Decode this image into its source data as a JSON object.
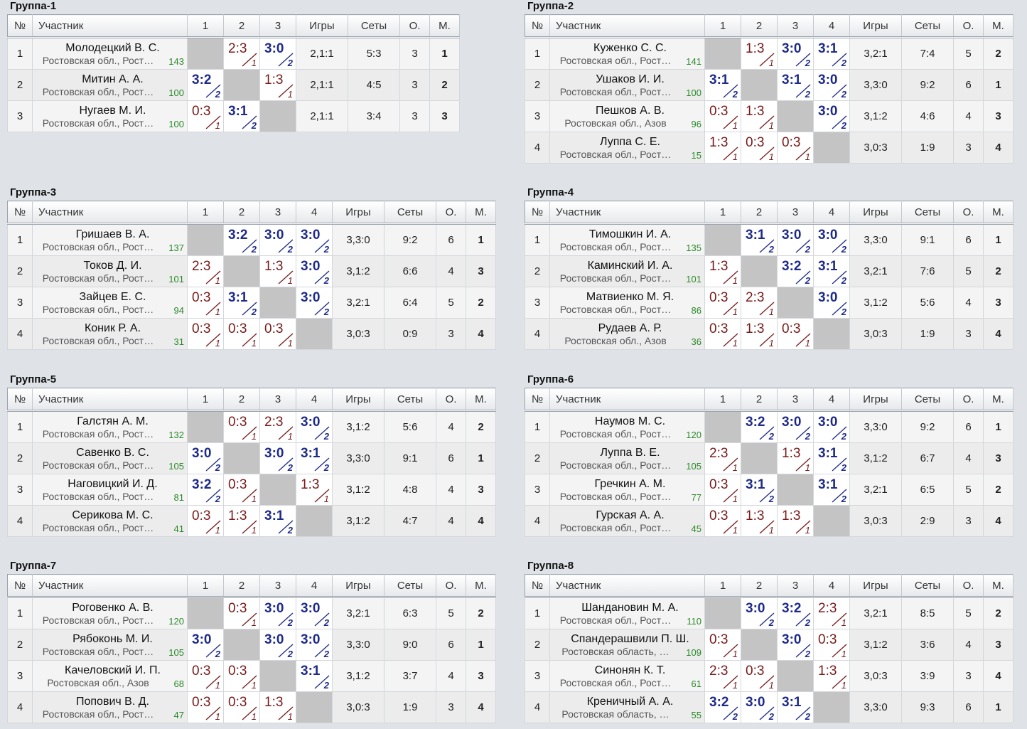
{
  "headers": {
    "no": "№",
    "participant": "Участник",
    "games": "Игры",
    "sets": "Сеты",
    "points": "О.",
    "place": "М."
  },
  "groups": [
    {
      "title": "Группа-1",
      "players": [
        {
          "n": "1",
          "name": "Молодецкий В. С.",
          "region": "Ростовская обл., Рост…",
          "rating": "143",
          "results": [
            null,
            {
              "s": "2:3",
              "p": "1",
              "w": false
            },
            {
              "s": "3:0",
              "p": "2",
              "w": true
            }
          ],
          "games": "2,1:1",
          "sets": "5:3",
          "pts": "3",
          "place": "1"
        },
        {
          "n": "2",
          "name": "Митин А. А.",
          "region": "Ростовская обл., Рост…",
          "rating": "100",
          "results": [
            {
              "s": "3:2",
              "p": "2",
              "w": true
            },
            null,
            {
              "s": "1:3",
              "p": "1",
              "w": false
            }
          ],
          "games": "2,1:1",
          "sets": "4:5",
          "pts": "3",
          "place": "2"
        },
        {
          "n": "3",
          "name": "Нугаев М. И.",
          "region": "Ростовская обл., Рост…",
          "rating": "100",
          "results": [
            {
              "s": "0:3",
              "p": "1",
              "w": false
            },
            {
              "s": "3:1",
              "p": "2",
              "w": true
            },
            null
          ],
          "games": "2,1:1",
          "sets": "3:4",
          "pts": "3",
          "place": "3"
        }
      ]
    },
    {
      "title": "Группа-2",
      "players": [
        {
          "n": "1",
          "name": "Куженко С. С.",
          "region": "Ростовская обл., Рост…",
          "rating": "141",
          "results": [
            null,
            {
              "s": "1:3",
              "p": "1",
              "w": false
            },
            {
              "s": "3:0",
              "p": "2",
              "w": true
            },
            {
              "s": "3:1",
              "p": "2",
              "w": true
            }
          ],
          "games": "3,2:1",
          "sets": "7:4",
          "pts": "5",
          "place": "2"
        },
        {
          "n": "2",
          "name": "Ушаков И. И.",
          "region": "Ростовская обл., Рост…",
          "rating": "100",
          "results": [
            {
              "s": "3:1",
              "p": "2",
              "w": true
            },
            null,
            {
              "s": "3:1",
              "p": "2",
              "w": true
            },
            {
              "s": "3:0",
              "p": "2",
              "w": true
            }
          ],
          "games": "3,3:0",
          "sets": "9:2",
          "pts": "6",
          "place": "1"
        },
        {
          "n": "3",
          "name": "Пешков А. В.",
          "region": "Ростовская обл., Азов",
          "rating": "96",
          "results": [
            {
              "s": "0:3",
              "p": "1",
              "w": false
            },
            {
              "s": "1:3",
              "p": "1",
              "w": false
            },
            null,
            {
              "s": "3:0",
              "p": "2",
              "w": true
            }
          ],
          "games": "3,1:2",
          "sets": "4:6",
          "pts": "4",
          "place": "3"
        },
        {
          "n": "4",
          "name": "Луппа С. Е.",
          "region": "Ростовская обл., Рост…",
          "rating": "15",
          "results": [
            {
              "s": "1:3",
              "p": "1",
              "w": false
            },
            {
              "s": "0:3",
              "p": "1",
              "w": false
            },
            {
              "s": "0:3",
              "p": "1",
              "w": false
            },
            null
          ],
          "games": "3,0:3",
          "sets": "1:9",
          "pts": "3",
          "place": "4"
        }
      ]
    },
    {
      "title": "Группа-3",
      "players": [
        {
          "n": "1",
          "name": "Гришаев В. А.",
          "region": "Ростовская обл., Рост…",
          "rating": "137",
          "results": [
            null,
            {
              "s": "3:2",
              "p": "2",
              "w": true
            },
            {
              "s": "3:0",
              "p": "2",
              "w": true
            },
            {
              "s": "3:0",
              "p": "2",
              "w": true
            }
          ],
          "games": "3,3:0",
          "sets": "9:2",
          "pts": "6",
          "place": "1"
        },
        {
          "n": "2",
          "name": "Токов Д. И.",
          "region": "Ростовская обл., Рост…",
          "rating": "101",
          "results": [
            {
              "s": "2:3",
              "p": "1",
              "w": false
            },
            null,
            {
              "s": "1:3",
              "p": "1",
              "w": false
            },
            {
              "s": "3:0",
              "p": "2",
              "w": true
            }
          ],
          "games": "3,1:2",
          "sets": "6:6",
          "pts": "4",
          "place": "3"
        },
        {
          "n": "3",
          "name": "Зайцев Е. С.",
          "region": "Ростовская обл., Рост…",
          "rating": "94",
          "results": [
            {
              "s": "0:3",
              "p": "1",
              "w": false
            },
            {
              "s": "3:1",
              "p": "2",
              "w": true
            },
            null,
            {
              "s": "3:0",
              "p": "2",
              "w": true
            }
          ],
          "games": "3,2:1",
          "sets": "6:4",
          "pts": "5",
          "place": "2"
        },
        {
          "n": "4",
          "name": "Коник Р. А.",
          "region": "Ростовская обл., Рост…",
          "rating": "31",
          "results": [
            {
              "s": "0:3",
              "p": "1",
              "w": false
            },
            {
              "s": "0:3",
              "p": "1",
              "w": false
            },
            {
              "s": "0:3",
              "p": "1",
              "w": false
            },
            null
          ],
          "games": "3,0:3",
          "sets": "0:9",
          "pts": "3",
          "place": "4"
        }
      ]
    },
    {
      "title": "Группа-4",
      "players": [
        {
          "n": "1",
          "name": "Тимошкин И. А.",
          "region": "Ростовская обл., Рост…",
          "rating": "135",
          "results": [
            null,
            {
              "s": "3:1",
              "p": "2",
              "w": true
            },
            {
              "s": "3:0",
              "p": "2",
              "w": true
            },
            {
              "s": "3:0",
              "p": "2",
              "w": true
            }
          ],
          "games": "3,3:0",
          "sets": "9:1",
          "pts": "6",
          "place": "1"
        },
        {
          "n": "2",
          "name": "Каминский И. А.",
          "region": "Ростовская обл., Рост…",
          "rating": "101",
          "results": [
            {
              "s": "1:3",
              "p": "1",
              "w": false
            },
            null,
            {
              "s": "3:2",
              "p": "2",
              "w": true
            },
            {
              "s": "3:1",
              "p": "2",
              "w": true
            }
          ],
          "games": "3,2:1",
          "sets": "7:6",
          "pts": "5",
          "place": "2"
        },
        {
          "n": "3",
          "name": "Матвиенко М. Я.",
          "region": "Ростовская обл., Рост…",
          "rating": "86",
          "results": [
            {
              "s": "0:3",
              "p": "1",
              "w": false
            },
            {
              "s": "2:3",
              "p": "1",
              "w": false
            },
            null,
            {
              "s": "3:0",
              "p": "2",
              "w": true
            }
          ],
          "games": "3,1:2",
          "sets": "5:6",
          "pts": "4",
          "place": "3"
        },
        {
          "n": "4",
          "name": "Рудаев А. Р.",
          "region": "Ростовская обл., Азов",
          "rating": "36",
          "results": [
            {
              "s": "0:3",
              "p": "1",
              "w": false
            },
            {
              "s": "1:3",
              "p": "1",
              "w": false
            },
            {
              "s": "0:3",
              "p": "1",
              "w": false
            },
            null
          ],
          "games": "3,0:3",
          "sets": "1:9",
          "pts": "3",
          "place": "4"
        }
      ]
    },
    {
      "title": "Группа-5",
      "players": [
        {
          "n": "1",
          "name": "Галстян А. М.",
          "region": "Ростовская обл., Рост…",
          "rating": "132",
          "results": [
            null,
            {
              "s": "0:3",
              "p": "1",
              "w": false
            },
            {
              "s": "2:3",
              "p": "1",
              "w": false
            },
            {
              "s": "3:0",
              "p": "2",
              "w": true
            }
          ],
          "games": "3,1:2",
          "sets": "5:6",
          "pts": "4",
          "place": "2"
        },
        {
          "n": "2",
          "name": "Савенко В. С.",
          "region": "Ростовская обл., Рост…",
          "rating": "105",
          "results": [
            {
              "s": "3:0",
              "p": "2",
              "w": true
            },
            null,
            {
              "s": "3:0",
              "p": "2",
              "w": true
            },
            {
              "s": "3:1",
              "p": "2",
              "w": true
            }
          ],
          "games": "3,3:0",
          "sets": "9:1",
          "pts": "6",
          "place": "1"
        },
        {
          "n": "3",
          "name": "Наговицкий И. Д.",
          "region": "Ростовская обл., Рост…",
          "rating": "81",
          "results": [
            {
              "s": "3:2",
              "p": "2",
              "w": true
            },
            {
              "s": "0:3",
              "p": "1",
              "w": false
            },
            null,
            {
              "s": "1:3",
              "p": "1",
              "w": false
            }
          ],
          "games": "3,1:2",
          "sets": "4:8",
          "pts": "4",
          "place": "3"
        },
        {
          "n": "4",
          "name": "Серикова М. С.",
          "region": "Ростовская обл., Рост…",
          "rating": "41",
          "results": [
            {
              "s": "0:3",
              "p": "1",
              "w": false
            },
            {
              "s": "1:3",
              "p": "1",
              "w": false
            },
            {
              "s": "3:1",
              "p": "2",
              "w": true
            },
            null
          ],
          "games": "3,1:2",
          "sets": "4:7",
          "pts": "4",
          "place": "4"
        }
      ]
    },
    {
      "title": "Группа-6",
      "players": [
        {
          "n": "1",
          "name": "Наумов М. С.",
          "region": "Ростовская обл., Рост…",
          "rating": "120",
          "results": [
            null,
            {
              "s": "3:2",
              "p": "2",
              "w": true
            },
            {
              "s": "3:0",
              "p": "2",
              "w": true
            },
            {
              "s": "3:0",
              "p": "2",
              "w": true
            }
          ],
          "games": "3,3:0",
          "sets": "9:2",
          "pts": "6",
          "place": "1"
        },
        {
          "n": "2",
          "name": "Луппа В. Е.",
          "region": "Ростовская обл., Рост…",
          "rating": "105",
          "results": [
            {
              "s": "2:3",
              "p": "1",
              "w": false
            },
            null,
            {
              "s": "1:3",
              "p": "1",
              "w": false
            },
            {
              "s": "3:1",
              "p": "2",
              "w": true
            }
          ],
          "games": "3,1:2",
          "sets": "6:7",
          "pts": "4",
          "place": "3"
        },
        {
          "n": "3",
          "name": "Гречкин А. М.",
          "region": "Ростовская обл., Рост…",
          "rating": "77",
          "results": [
            {
              "s": "0:3",
              "p": "1",
              "w": false
            },
            {
              "s": "3:1",
              "p": "2",
              "w": true
            },
            null,
            {
              "s": "3:1",
              "p": "2",
              "w": true
            }
          ],
          "games": "3,2:1",
          "sets": "6:5",
          "pts": "5",
          "place": "2"
        },
        {
          "n": "4",
          "name": "Гурская А. А.",
          "region": "Ростовская обл., Рост…",
          "rating": "45",
          "results": [
            {
              "s": "0:3",
              "p": "1",
              "w": false
            },
            {
              "s": "1:3",
              "p": "1",
              "w": false
            },
            {
              "s": "1:3",
              "p": "1",
              "w": false
            },
            null
          ],
          "games": "3,0:3",
          "sets": "2:9",
          "pts": "3",
          "place": "4"
        }
      ]
    },
    {
      "title": "Группа-7",
      "players": [
        {
          "n": "1",
          "name": "Роговенко А. В.",
          "region": "Ростовская обл., Рост…",
          "rating": "120",
          "results": [
            null,
            {
              "s": "0:3",
              "p": "1",
              "w": false
            },
            {
              "s": "3:0",
              "p": "2",
              "w": true
            },
            {
              "s": "3:0",
              "p": "2",
              "w": true
            }
          ],
          "games": "3,2:1",
          "sets": "6:3",
          "pts": "5",
          "place": "2"
        },
        {
          "n": "2",
          "name": "Рябоконь М. И.",
          "region": "Ростовская обл., Рост…",
          "rating": "105",
          "results": [
            {
              "s": "3:0",
              "p": "2",
              "w": true
            },
            null,
            {
              "s": "3:0",
              "p": "2",
              "w": true
            },
            {
              "s": "3:0",
              "p": "2",
              "w": true
            }
          ],
          "games": "3,3:0",
          "sets": "9:0",
          "pts": "6",
          "place": "1"
        },
        {
          "n": "3",
          "name": "Качеловский И. П.",
          "region": "Ростовская обл., Азов",
          "rating": "68",
          "results": [
            {
              "s": "0:3",
              "p": "1",
              "w": false
            },
            {
              "s": "0:3",
              "p": "1",
              "w": false
            },
            null,
            {
              "s": "3:1",
              "p": "2",
              "w": true
            }
          ],
          "games": "3,1:2",
          "sets": "3:7",
          "pts": "4",
          "place": "3"
        },
        {
          "n": "4",
          "name": "Попович В. Д.",
          "region": "Ростовская обл., Рост…",
          "rating": "47",
          "results": [
            {
              "s": "0:3",
              "p": "1",
              "w": false
            },
            {
              "s": "0:3",
              "p": "1",
              "w": false
            },
            {
              "s": "1:3",
              "p": "1",
              "w": false
            },
            null
          ],
          "games": "3,0:3",
          "sets": "1:9",
          "pts": "3",
          "place": "4"
        }
      ]
    },
    {
      "title": "Группа-8",
      "players": [
        {
          "n": "1",
          "name": "Шандановин М. А.",
          "region": "Ростовская обл., Рост…",
          "rating": "110",
          "results": [
            null,
            {
              "s": "3:0",
              "p": "2",
              "w": true
            },
            {
              "s": "3:2",
              "p": "2",
              "w": true
            },
            {
              "s": "2:3",
              "p": "1",
              "w": false
            }
          ],
          "games": "3,2:1",
          "sets": "8:5",
          "pts": "5",
          "place": "2"
        },
        {
          "n": "2",
          "name": "Спандерашвили П. Ш.",
          "region": "Ростовская область, …",
          "rating": "109",
          "results": [
            {
              "s": "0:3",
              "p": "1",
              "w": false
            },
            null,
            {
              "s": "3:0",
              "p": "2",
              "w": true
            },
            {
              "s": "0:3",
              "p": "1",
              "w": false
            }
          ],
          "games": "3,1:2",
          "sets": "3:6",
          "pts": "4",
          "place": "3"
        },
        {
          "n": "3",
          "name": "Синонян К. Т.",
          "region": "Ростовская обл., Рост…",
          "rating": "61",
          "results": [
            {
              "s": "2:3",
              "p": "1",
              "w": false
            },
            {
              "s": "0:3",
              "p": "1",
              "w": false
            },
            null,
            {
              "s": "1:3",
              "p": "1",
              "w": false
            }
          ],
          "games": "3,0:3",
          "sets": "3:9",
          "pts": "3",
          "place": "4"
        },
        {
          "n": "4",
          "name": "Креничный А. А.",
          "region": "Ростовская область, …",
          "rating": "55",
          "results": [
            {
              "s": "3:2",
              "p": "2",
              "w": true
            },
            {
              "s": "3:0",
              "p": "2",
              "w": true
            },
            {
              "s": "3:1",
              "p": "2",
              "w": true
            },
            null
          ],
          "games": "3,3:0",
          "sets": "9:3",
          "pts": "6",
          "place": "1"
        }
      ]
    }
  ]
}
